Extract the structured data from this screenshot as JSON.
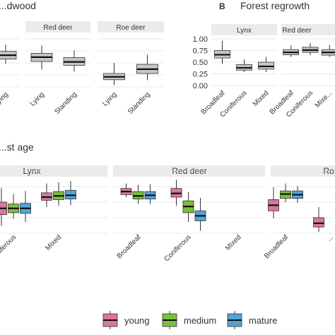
{
  "chart_data": [
    {
      "type": "box",
      "panel_title": "...dwood",
      "facets": [
        {
          "name": "",
          "categories": [
            "...ying"
          ],
          "boxes": [
            {
              "category": "...ying",
              "min": 0.48,
              "q1": 0.58,
              "median": 0.66,
              "q3": 0.74,
              "max": 0.88
            }
          ]
        },
        {
          "name": "Red deer",
          "categories": [
            "Lying",
            "Standing"
          ],
          "boxes": [
            {
              "category": "Lying",
              "min": 0.36,
              "q1": 0.53,
              "median": 0.62,
              "q3": 0.7,
              "max": 0.86
            },
            {
              "category": "Standing",
              "min": 0.32,
              "q1": 0.45,
              "median": 0.52,
              "q3": 0.61,
              "max": 0.76
            }
          ]
        },
        {
          "name": "Roe deer",
          "categories": [
            "Lying",
            "Standing"
          ],
          "boxes": [
            {
              "category": "Lying",
              "min": 0.04,
              "q1": 0.15,
              "median": 0.21,
              "q3": 0.28,
              "max": 0.5
            },
            {
              "category": "Standing",
              "min": 0.14,
              "q1": 0.28,
              "median": 0.37,
              "q3": 0.47,
              "max": 0.67
            }
          ]
        }
      ]
    },
    {
      "type": "box",
      "panel_label": "B",
      "panel_title": "Forest regrowth",
      "y_ticks": [
        "1.00",
        "0.75",
        "0.50",
        "0.25",
        "0.00"
      ],
      "ylim": [
        0,
        1
      ],
      "facets": [
        {
          "name": "Lynx",
          "categories": [
            "Broadleaf",
            "Coniferous",
            "Mixed"
          ],
          "boxes": [
            {
              "category": "Broadleaf",
              "min": 0.46,
              "q1": 0.59,
              "median": 0.66,
              "q3": 0.75,
              "max": 0.96
            },
            {
              "category": "Coniferous",
              "min": 0.29,
              "q1": 0.33,
              "median": 0.38,
              "q3": 0.45,
              "max": 0.56
            },
            {
              "category": "Mixed",
              "min": 0.29,
              "q1": 0.35,
              "median": 0.41,
              "q3": 0.5,
              "max": 0.61
            }
          ]
        },
        {
          "name": "Red deer",
          "categories": [
            "Broadleaf",
            "Coniferous",
            "Mixe..."
          ],
          "boxes": [
            {
              "category": "Broadleaf",
              "min": 0.61,
              "q1": 0.66,
              "median": 0.71,
              "q3": 0.77,
              "max": 0.86
            },
            {
              "category": "Coniferous",
              "min": 0.65,
              "q1": 0.71,
              "median": 0.76,
              "q3": 0.82,
              "max": 0.91
            },
            {
              "category": "Mixe...",
              "min": 0.61,
              "q1": 0.65,
              "median": 0.71,
              "q3": 0.77,
              "max": 0.87
            }
          ]
        }
      ]
    },
    {
      "type": "box",
      "panel_title": "...st age",
      "facets": [
        {
          "name": "Lynx",
          "categories": [
            "Coniferous",
            "Mixed"
          ],
          "group_positions": [
            1,
            2
          ],
          "boxes": [
            {
              "category": "Coniferous",
              "group": "young",
              "min": 0.12,
              "q1": 0.3,
              "median": 0.4,
              "q3": 0.5,
              "max": 0.73
            },
            {
              "category": "Coniferous",
              "group": "medium",
              "min": 0.23,
              "q1": 0.33,
              "median": 0.4,
              "q3": 0.47,
              "max": 0.63
            },
            {
              "category": "Coniferous",
              "group": "mature",
              "min": 0.18,
              "q1": 0.32,
              "median": 0.4,
              "q3": 0.48,
              "max": 0.68
            },
            {
              "category": "Mixed",
              "group": "young",
              "min": 0.42,
              "q1": 0.53,
              "median": 0.58,
              "q3": 0.65,
              "max": 0.8
            },
            {
              "category": "Mixed",
              "group": "medium",
              "min": 0.44,
              "q1": 0.54,
              "median": 0.6,
              "q3": 0.67,
              "max": 0.82
            },
            {
              "category": "Mixed",
              "group": "mature",
              "min": 0.45,
              "q1": 0.55,
              "median": 0.61,
              "q3": 0.69,
              "max": 0.84
            }
          ]
        },
        {
          "name": "Red deer",
          "categories": [
            "Broadleaf",
            "Coniferous",
            "Mixed"
          ],
          "group_positions": [
            1,
            2,
            3
          ],
          "boxes": [
            {
              "category": "Broadleaf",
              "group": "young",
              "min": 0.58,
              "q1": 0.62,
              "median": 0.67,
              "q3": 0.72,
              "max": 0.8
            },
            {
              "category": "Broadleaf",
              "group": "medium",
              "min": 0.47,
              "q1": 0.55,
              "median": 0.6,
              "q3": 0.67,
              "max": 0.78
            },
            {
              "category": "Broadleaf",
              "group": "mature",
              "min": 0.47,
              "q1": 0.55,
              "median": 0.61,
              "q3": 0.67,
              "max": 0.79
            },
            {
              "category": "Coniferous",
              "group": "young",
              "min": 0.44,
              "q1": 0.58,
              "median": 0.64,
              "q3": 0.72,
              "max": 0.86
            },
            {
              "category": "Coniferous",
              "group": "medium",
              "min": 0.18,
              "q1": 0.33,
              "median": 0.43,
              "q3": 0.52,
              "max": 0.66
            },
            {
              "category": "Coniferous",
              "group": "mature",
              "min": 0.04,
              "q1": 0.2,
              "median": 0.28,
              "q3": 0.36,
              "max": 0.57
            }
          ]
        },
        {
          "name": "Ro...",
          "categories": [
            "Broadleaf",
            "..."
          ],
          "group_positions": [
            1,
            2
          ],
          "boxes": [
            {
              "category": "Broadleaf",
              "group": "young",
              "min": 0.24,
              "q1": 0.36,
              "median": 0.45,
              "q3": 0.54,
              "max": 0.74
            },
            {
              "category": "Broadleaf",
              "group": "medium",
              "min": 0.5,
              "q1": 0.56,
              "median": 0.63,
              "q3": 0.68,
              "max": 0.8
            },
            {
              "category": "Broadleaf",
              "group": "mature",
              "min": 0.49,
              "q1": 0.56,
              "median": 0.62,
              "q3": 0.68,
              "max": 0.76
            },
            {
              "category": "...",
              "group": "young",
              "min": 0.02,
              "q1": 0.1,
              "median": 0.16,
              "q3": 0.25,
              "max": 0.42
            }
          ]
        }
      ],
      "legend": {
        "position": "bottom",
        "entries": [
          {
            "label": "young",
            "color": "#d9779e"
          },
          {
            "label": "medium",
            "color": "#7bbd3d"
          },
          {
            "label": "mature",
            "color": "#56a2d6"
          }
        ]
      }
    }
  ],
  "colors": {
    "single_box_fill": "#c6c7c4",
    "strip": "#ebebeb",
    "outline": "#333333",
    "median": "#111111"
  }
}
